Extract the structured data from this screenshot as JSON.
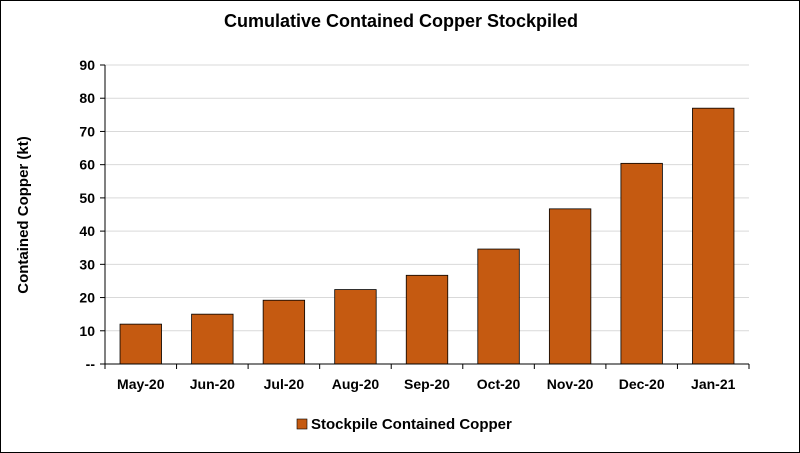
{
  "chart_data": {
    "type": "bar",
    "title": "Cumulative Contained Copper Stockpiled",
    "ylabel": "Contained Copper (kt)",
    "xlabel": "",
    "categories": [
      "May-20",
      "Jun-20",
      "Jul-20",
      "Aug-20",
      "Sep-20",
      "Oct-20",
      "Nov-20",
      "Dec-20",
      "Jan-21"
    ],
    "series": [
      {
        "name": "Stockpile Contained Copper",
        "color": "#c55a11",
        "values": [
          12,
          15,
          19.2,
          22.4,
          26.7,
          34.6,
          46.7,
          60.4,
          77
        ]
      }
    ],
    "ylim": [
      0,
      90
    ],
    "yticks": [
      0,
      10,
      20,
      30,
      40,
      50,
      60,
      70,
      80,
      90
    ],
    "ytick_labels": [
      "--",
      "10",
      "20",
      "30",
      "40",
      "50",
      "60",
      "70",
      "80",
      "90"
    ],
    "grid": true,
    "legend_position": "bottom"
  }
}
